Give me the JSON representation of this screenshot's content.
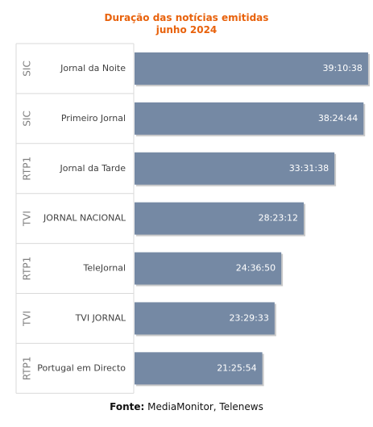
{
  "chart_data": {
    "type": "bar",
    "orientation": "horizontal",
    "title": "Duração das notícias emitidas",
    "subtitle": "junho 2024",
    "colors": {
      "bar": "#7589A4",
      "title": "#E8620C",
      "grid": "#D9D9D9",
      "group_label": "#7F7F7F"
    },
    "rows": [
      {
        "channel": "SIC",
        "program": "Jornal da Noite",
        "value_label": "39:10:38",
        "seconds": 141038
      },
      {
        "channel": "SIC",
        "program": "Primeiro Jornal",
        "value_label": "38:24:44",
        "seconds": 138284
      },
      {
        "channel": "RTP1",
        "program": "Jornal da Tarde",
        "value_label": "33:31:38",
        "seconds": 120698
      },
      {
        "channel": "TVI",
        "program": "JORNAL NACIONAL",
        "value_label": "28:23:12",
        "seconds": 102192
      },
      {
        "channel": "RTP1",
        "program": "TeleJornal",
        "value_label": "24:36:50",
        "seconds": 88610
      },
      {
        "channel": "TVI",
        "program": "TVI JORNAL",
        "value_label": "23:29:33",
        "seconds": 84573
      },
      {
        "channel": "RTP1",
        "program": "Portugal em Directo",
        "value_label": "21:25:54",
        "seconds": 77154
      }
    ],
    "xlim_seconds": [
      0,
      144000
    ]
  },
  "source": {
    "label": "Fonte:",
    "text": "MediaMonitor, Telenews"
  }
}
